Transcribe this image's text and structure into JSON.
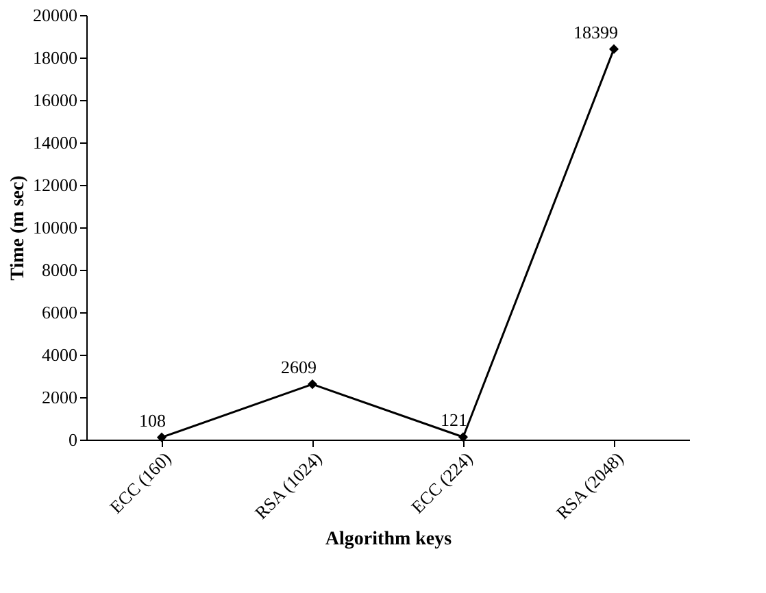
{
  "chart_data": {
    "type": "line",
    "xlabel": "Algorithm keys",
    "ylabel": "Time (m sec)",
    "categories": [
      "ECC (160)",
      "RSA (1024)",
      "ECC (224)",
      "RSA (2048)"
    ],
    "series": [
      {
        "color": "#000000",
        "values": [
          108,
          2609,
          121,
          18399
        ]
      }
    ],
    "ylim": [
      0,
      20000
    ],
    "yticks": [
      0,
      2000,
      4000,
      6000,
      8000,
      10000,
      12000,
      14000,
      16000,
      18000,
      20000
    ],
    "marker": "diamond",
    "line_style": "solid",
    "data_labels": true,
    "grid": false,
    "legend": false
  }
}
